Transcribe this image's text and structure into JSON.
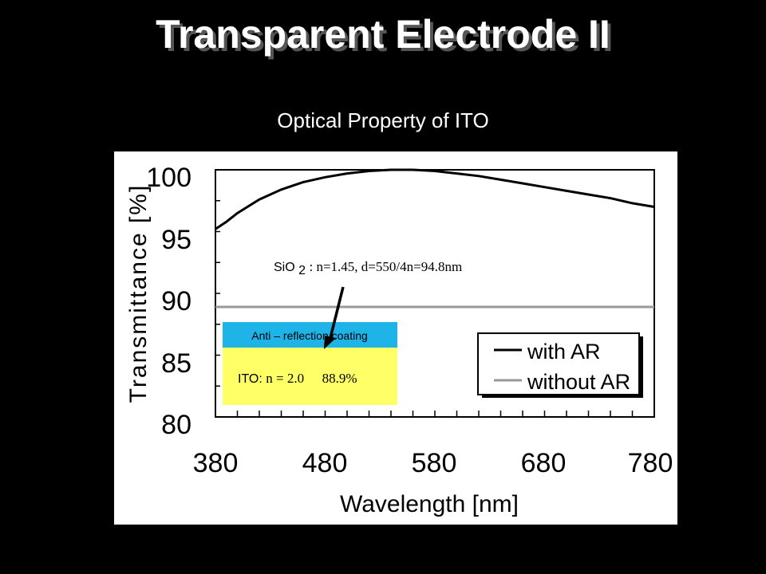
{
  "slide": {
    "title": "Transparent Electrode II",
    "subtitle": "Optical Property of ITO"
  },
  "chart_data": {
    "type": "line",
    "xlabel": "Wavelength [nm]",
    "ylabel": "Transmittance [%]",
    "xlim": [
      380,
      780
    ],
    "ylim": [
      80,
      100
    ],
    "x_ticks": [
      "380",
      "480",
      "580",
      "680",
      "780"
    ],
    "y_ticks": [
      "100",
      "95",
      "90",
      "85",
      "80"
    ],
    "legend_position": "right, lower half",
    "series": [
      {
        "name": "with AR",
        "color": "#000000",
        "x": [
          380,
          390,
          400,
          420,
          440,
          460,
          480,
          500,
          520,
          540,
          560,
          580,
          600,
          620,
          640,
          660,
          680,
          700,
          720,
          740,
          760,
          780
        ],
        "y": [
          95.2,
          95.8,
          96.5,
          97.6,
          98.4,
          99.0,
          99.4,
          99.7,
          99.9,
          100.0,
          100.0,
          99.9,
          99.7,
          99.5,
          99.2,
          98.9,
          98.6,
          98.3,
          98.0,
          97.7,
          97.3,
          97.0
        ]
      },
      {
        "name": "without AR",
        "color": "#999999",
        "x": [
          380,
          780
        ],
        "y": [
          88.9,
          88.9
        ]
      }
    ],
    "annotations": {
      "sio2_prefix": "SiO",
      "sio2_sub": "2",
      "sio2_formula": ": n=1.45, d=550/4n=94.8nm",
      "coating_label": "Anti – reflection coating",
      "ito_prefix": "ITO: ",
      "ito_formula": "n = 2.0",
      "ito_value": "88.9%",
      "coating_color": "#1fb4e8",
      "ito_color": "#ffff66"
    }
  }
}
